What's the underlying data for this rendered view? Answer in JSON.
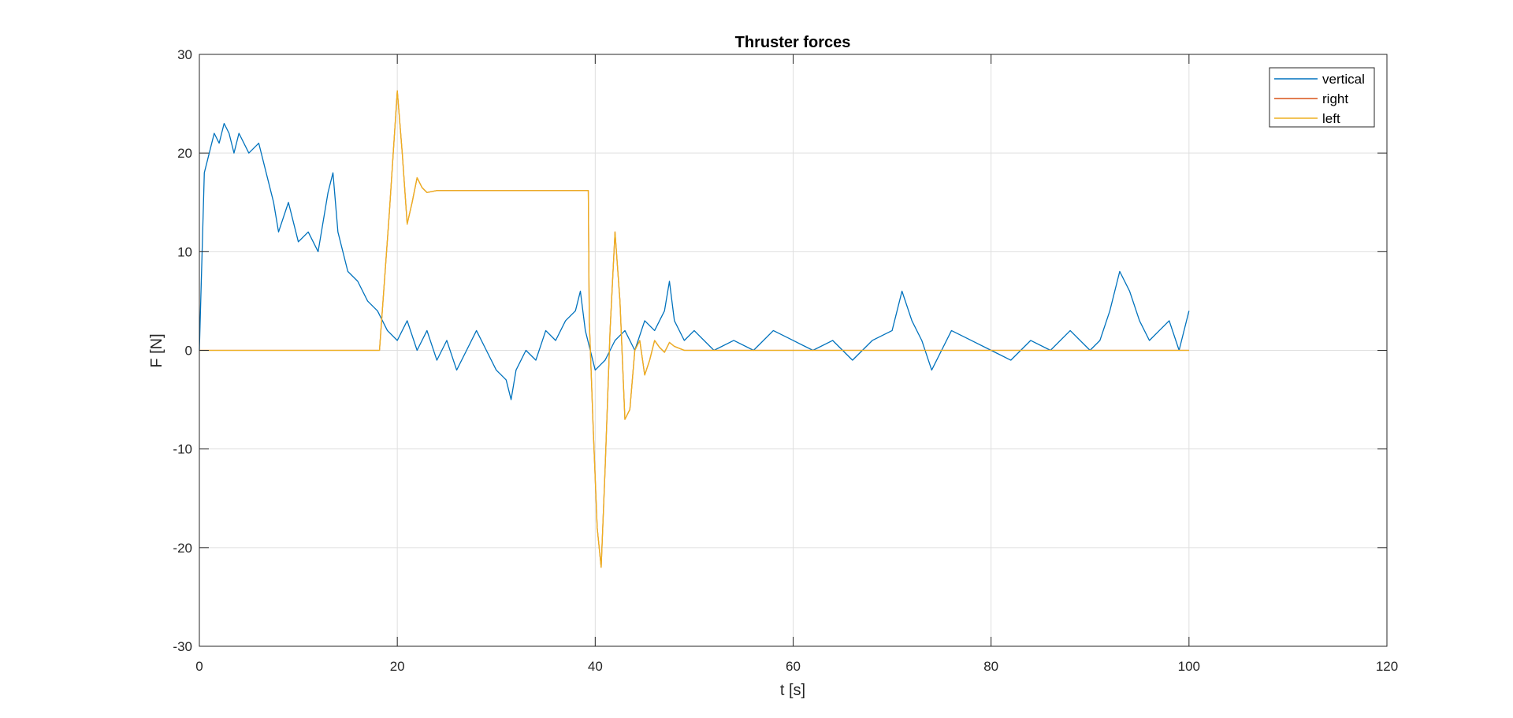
{
  "chart_data": {
    "type": "line",
    "title": "Thruster forces",
    "xlabel": "t [s]",
    "ylabel": "F [N]",
    "xlim": [
      0,
      120
    ],
    "ylim": [
      -30,
      30
    ],
    "xticks": [
      0,
      20,
      40,
      60,
      80,
      100,
      120
    ],
    "yticks": [
      -30,
      -20,
      -10,
      0,
      10,
      20,
      30
    ],
    "xtick_labels": [
      "0",
      "20",
      "40",
      "60",
      "80",
      "100",
      "120"
    ],
    "ytick_labels": [
      "-30",
      "-20",
      "-10",
      "0",
      "10",
      "20",
      "30"
    ],
    "grid": true,
    "legend_position": "top-right",
    "series": [
      {
        "name": "vertical",
        "color": "#0072BD",
        "x": [
          0,
          0.5,
          1,
          1.5,
          2,
          2.5,
          3,
          3.5,
          4,
          5,
          6,
          7,
          7.5,
          8,
          9,
          10,
          11,
          12,
          13,
          13.5,
          14,
          15,
          16,
          17,
          18,
          19,
          20,
          21,
          22,
          23,
          24,
          25,
          26,
          27,
          28,
          29,
          30,
          31,
          31.5,
          32,
          33,
          34,
          35,
          36,
          37,
          38,
          38.5,
          39,
          40,
          41,
          42,
          43,
          44,
          45,
          46,
          47,
          47.5,
          48,
          49,
          50,
          52,
          54,
          56,
          58,
          60,
          62,
          64,
          66,
          68,
          70,
          71,
          72,
          73,
          74,
          75,
          76,
          78,
          80,
          82,
          84,
          86,
          88,
          90,
          91,
          92,
          93,
          94,
          95,
          96,
          97,
          98,
          99,
          100
        ],
        "y": [
          0,
          18,
          20,
          22,
          21,
          23,
          22,
          20,
          22,
          20,
          21,
          17,
          15,
          12,
          15,
          11,
          12,
          10,
          16,
          18,
          12,
          8,
          7,
          5,
          4,
          2,
          1,
          3,
          0,
          2,
          -1,
          1,
          -2,
          0,
          2,
          0,
          -2,
          -3,
          -5,
          -2,
          0,
          -1,
          2,
          1,
          3,
          4,
          6,
          2,
          -2,
          -1,
          1,
          2,
          0,
          3,
          2,
          4,
          7,
          3,
          1,
          2,
          0,
          1,
          0,
          2,
          1,
          0,
          1,
          -1,
          1,
          2,
          6,
          3,
          1,
          -2,
          0,
          2,
          1,
          0,
          -1,
          1,
          0,
          2,
          0,
          1,
          4,
          8,
          6,
          3,
          1,
          2,
          3,
          0,
          4
        ]
      },
      {
        "name": "right",
        "color": "#D95319",
        "x": [
          0,
          18.2,
          19.2,
          20,
          20.5,
          21,
          21.5,
          22,
          22.5,
          23,
          24,
          39.3,
          39.4,
          39.8,
          40.2,
          40.6,
          41,
          41.5,
          42,
          42.5,
          43,
          43.5,
          44,
          44.5,
          45,
          45.5,
          46,
          46.5,
          47,
          47.5,
          48,
          49,
          50,
          100
        ],
        "y": [
          0,
          0,
          14,
          26.3,
          20,
          12.8,
          15,
          17.5,
          16.5,
          16,
          16.2,
          16.2,
          3,
          -8,
          -18,
          -22,
          -12,
          2,
          12,
          5,
          -7,
          -6,
          0,
          1,
          -2.5,
          -1,
          1,
          0.3,
          -0.2,
          0.8,
          0.4,
          0,
          0,
          0
        ]
      },
      {
        "name": "left",
        "color": "#EDB120",
        "x": [
          0,
          18.2,
          19.2,
          20,
          20.5,
          21,
          21.5,
          22,
          22.5,
          23,
          24,
          39.3,
          39.4,
          39.8,
          40.2,
          40.6,
          41,
          41.5,
          42,
          42.5,
          43,
          43.5,
          44,
          44.5,
          45,
          45.5,
          46,
          46.5,
          47,
          47.5,
          48,
          49,
          50,
          100
        ],
        "y": [
          0,
          0,
          14,
          26.3,
          20,
          12.8,
          15,
          17.5,
          16.5,
          16,
          16.2,
          16.2,
          3,
          -8,
          -18,
          -22,
          -12,
          2,
          12,
          5,
          -7,
          -6,
          0,
          1,
          -2.5,
          -1,
          1,
          0.3,
          -0.2,
          0.8,
          0.4,
          0,
          0,
          0
        ]
      }
    ]
  }
}
